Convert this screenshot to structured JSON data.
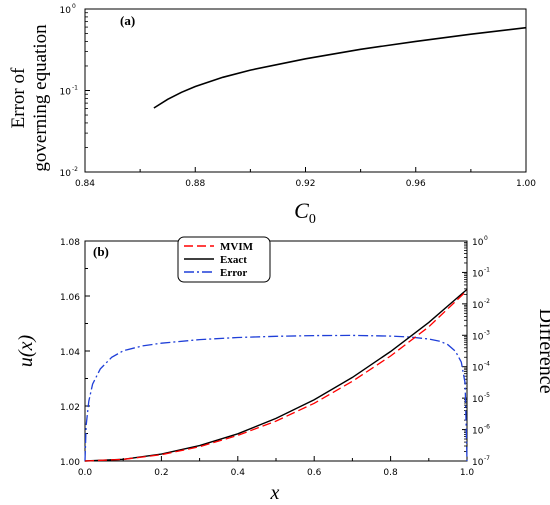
{
  "chart_data": [
    {
      "type": "line",
      "panel_label": "(a)",
      "xlabel": "C",
      "xlabel_sub": "0",
      "ylabel_lines": [
        "Error of",
        "governing equation"
      ],
      "xlim": [
        0.84,
        1.0
      ],
      "ylim": [
        0.01,
        1
      ],
      "yscale": "log",
      "x_ticks": [
        "0.84",
        "0.88",
        "0.92",
        "0.96",
        "1.00"
      ],
      "y_ticks": [
        {
          "base": "10",
          "exp": "-2",
          "value": 0.01
        },
        {
          "base": "10",
          "exp": "-1",
          "value": 0.1
        },
        {
          "base": "10",
          "exp": "0",
          "value": 1
        }
      ],
      "series": [
        {
          "color": "#000000",
          "x": [
            0.865,
            0.87,
            0.875,
            0.88,
            0.89,
            0.9,
            0.92,
            0.94,
            0.96,
            0.98,
            1.0
          ],
          "y": [
            0.061,
            0.078,
            0.095,
            0.112,
            0.145,
            0.178,
            0.245,
            0.32,
            0.4,
            0.49,
            0.59
          ]
        }
      ]
    },
    {
      "type": "line",
      "panel_label": "(b)",
      "xlabel": "x",
      "ylabel_left": "u(x)",
      "ylabel_right": "Difference",
      "xlim": [
        0,
        1
      ],
      "ylim_left": [
        1.0,
        1.08
      ],
      "ylim_right": [
        1e-07,
        1
      ],
      "yscale_right": "log",
      "x_ticks": [
        "0.0",
        "0.2",
        "0.4",
        "0.6",
        "0.8",
        "1.0"
      ],
      "y_ticks_left": [
        "1.00",
        "1.02",
        "1.04",
        "1.06",
        "1.08"
      ],
      "y_ticks_right": [
        {
          "base": "10",
          "exp": "-7"
        },
        {
          "base": "10",
          "exp": "-6"
        },
        {
          "base": "10",
          "exp": "-5"
        },
        {
          "base": "10",
          "exp": "-4"
        },
        {
          "base": "10",
          "exp": "-3"
        },
        {
          "base": "10",
          "exp": "-2"
        },
        {
          "base": "10",
          "exp": "-1"
        },
        {
          "base": "10",
          "exp": "0"
        }
      ],
      "legend_position": "top-center",
      "series": [
        {
          "name": "MVIM",
          "color": "#ff0000",
          "dash": "9,4",
          "axis": "left",
          "x": [
            0,
            0.1,
            0.2,
            0.3,
            0.4,
            0.5,
            0.6,
            0.7,
            0.8,
            0.9,
            1.0
          ],
          "y": [
            1.0,
            1.00058,
            1.0023,
            1.0052,
            1.0093,
            1.0145,
            1.021,
            1.029,
            1.0382,
            1.0488,
            1.062
          ]
        },
        {
          "name": "Exact",
          "color": "#000000",
          "dash": "",
          "axis": "left",
          "x": [
            0,
            0.1,
            0.2,
            0.3,
            0.4,
            0.5,
            0.6,
            0.7,
            0.8,
            0.9,
            1.0
          ],
          "y": [
            1.0,
            1.00062,
            1.0025,
            1.0056,
            1.0099,
            1.0155,
            1.0223,
            1.0304,
            1.0398,
            1.0504,
            1.0624
          ]
        },
        {
          "name": "Error",
          "color": "#1f3fd8",
          "dash": "10,3,2,3",
          "axis": "right",
          "x": [
            0.0,
            0.003,
            0.01,
            0.02,
            0.04,
            0.07,
            0.1,
            0.15,
            0.2,
            0.3,
            0.4,
            0.5,
            0.6,
            0.7,
            0.8,
            0.85,
            0.9,
            0.93,
            0.95,
            0.97,
            0.985,
            0.995,
            1.0
          ],
          "y": [
            1e-07,
            1.3e-06,
            8e-06,
            2.8e-05,
            8.5e-05,
            0.0002,
            0.00032,
            0.00046,
            0.00056,
            0.00073,
            0.00085,
            0.00093,
            0.00098,
            0.00099,
            0.00094,
            0.00088,
            0.00076,
            0.00064,
            0.0005,
            0.00031,
            0.00014,
            3e-05,
            1e-07
          ]
        }
      ]
    }
  ]
}
